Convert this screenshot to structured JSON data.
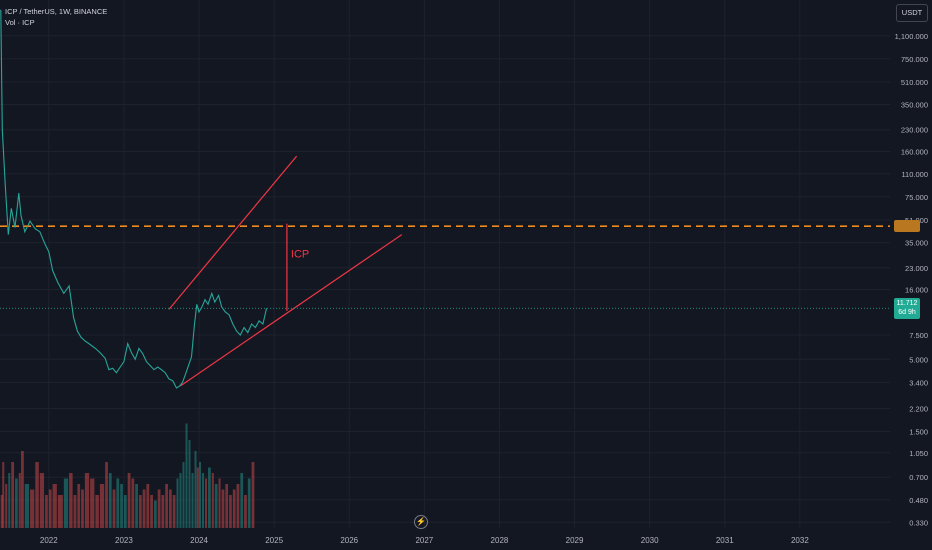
{
  "legend": {
    "symbol": "ICP / TetherUS, 1W, BINANCE",
    "indicator": "Vol · ICP"
  },
  "currency_button": "USDT",
  "price_label": {
    "price": "11.712",
    "countdown": "6d 9h"
  },
  "level_label": "",
  "colors": {
    "background": "#131722",
    "up": "#26a69a",
    "down": "#ef5350",
    "channel": "#f23645",
    "level": "#ef8a1f",
    "price_line": "#22ab94"
  },
  "chart_data": {
    "type": "line",
    "scale": "log",
    "ylim": [
      0.3,
      2000
    ],
    "xlim": [
      2021.35,
      2033.2
    ],
    "y_ticks": [
      {
        "v": 1100,
        "l": "1,100.000"
      },
      {
        "v": 750,
        "l": "750.000"
      },
      {
        "v": 510,
        "l": "510.000"
      },
      {
        "v": 350,
        "l": "350.000"
      },
      {
        "v": 230,
        "l": "230.000"
      },
      {
        "v": 160,
        "l": "160.000"
      },
      {
        "v": 110,
        "l": "110.000"
      },
      {
        "v": 75,
        "l": "75.000"
      },
      {
        "v": 51,
        "l": "51.000"
      },
      {
        "v": 35,
        "l": "35.000"
      },
      {
        "v": 23,
        "l": "23.000"
      },
      {
        "v": 16,
        "l": "16.000"
      },
      {
        "v": 7.5,
        "l": "7.500"
      },
      {
        "v": 5,
        "l": "5.000"
      },
      {
        "v": 3.4,
        "l": "3.400"
      },
      {
        "v": 2.2,
        "l": "2.200"
      },
      {
        "v": 1.5,
        "l": "1.500"
      },
      {
        "v": 1.05,
        "l": "1.050"
      },
      {
        "v": 0.7,
        "l": "0.700"
      },
      {
        "v": 0.48,
        "l": "0.480"
      },
      {
        "v": 0.33,
        "l": "0.330"
      }
    ],
    "x_ticks": [
      {
        "v": 2022,
        "l": "2022"
      },
      {
        "v": 2023,
        "l": "2023"
      },
      {
        "v": 2024,
        "l": "2024"
      },
      {
        "v": 2025,
        "l": "2025"
      },
      {
        "v": 2026,
        "l": "2026"
      },
      {
        "v": 2027,
        "l": "2027"
      },
      {
        "v": 2028,
        "l": "2028"
      },
      {
        "v": 2029,
        "l": "2029"
      },
      {
        "v": 2030,
        "l": "2030"
      },
      {
        "v": 2031,
        "l": "2031"
      },
      {
        "v": 2032,
        "l": "2032"
      }
    ],
    "series": [
      {
        "values": [
          [
            2021.36,
            1700
          ],
          [
            2021.38,
            230
          ],
          [
            2021.42,
            90
          ],
          [
            2021.46,
            40
          ],
          [
            2021.5,
            62
          ],
          [
            2021.55,
            45
          ],
          [
            2021.6,
            80
          ],
          [
            2021.63,
            55
          ],
          [
            2021.68,
            42
          ],
          [
            2021.75,
            50
          ],
          [
            2021.82,
            44
          ],
          [
            2021.88,
            42
          ],
          [
            2021.95,
            34
          ],
          [
            2022.0,
            30
          ],
          [
            2022.05,
            22
          ],
          [
            2022.12,
            18
          ],
          [
            2022.2,
            15
          ],
          [
            2022.27,
            17
          ],
          [
            2022.33,
            10
          ],
          [
            2022.38,
            8
          ],
          [
            2022.43,
            7.2
          ],
          [
            2022.48,
            6.8
          ],
          [
            2022.55,
            6.4
          ],
          [
            2022.62,
            6.0
          ],
          [
            2022.68,
            5.6
          ],
          [
            2022.75,
            5.1
          ],
          [
            2022.8,
            4.2
          ],
          [
            2022.85,
            4.3
          ],
          [
            2022.9,
            4.0
          ],
          [
            2022.95,
            4.4
          ],
          [
            2023.0,
            4.8
          ],
          [
            2023.05,
            6.5
          ],
          [
            2023.1,
            5.6
          ],
          [
            2023.15,
            5.0
          ],
          [
            2023.2,
            6.0
          ],
          [
            2023.25,
            5.5
          ],
          [
            2023.3,
            4.8
          ],
          [
            2023.35,
            4.5
          ],
          [
            2023.4,
            4.2
          ],
          [
            2023.45,
            4.4
          ],
          [
            2023.5,
            4.2
          ],
          [
            2023.55,
            4.0
          ],
          [
            2023.6,
            3.6
          ],
          [
            2023.65,
            3.5
          ],
          [
            2023.7,
            3.1
          ],
          [
            2023.74,
            3.2
          ],
          [
            2023.78,
            3.4
          ],
          [
            2023.82,
            3.9
          ],
          [
            2023.86,
            4.5
          ],
          [
            2023.9,
            5.2
          ],
          [
            2023.94,
            9.0
          ],
          [
            2023.97,
            12.5
          ],
          [
            2024.0,
            11.0
          ],
          [
            2024.04,
            12.0
          ],
          [
            2024.08,
            13.5
          ],
          [
            2024.12,
            12.5
          ],
          [
            2024.17,
            15.0
          ],
          [
            2024.21,
            13.0
          ],
          [
            2024.26,
            14.5
          ],
          [
            2024.3,
            12.0
          ],
          [
            2024.35,
            11.0
          ],
          [
            2024.4,
            10.5
          ],
          [
            2024.45,
            9.0
          ],
          [
            2024.5,
            8.0
          ],
          [
            2024.55,
            7.5
          ],
          [
            2024.6,
            8.5
          ],
          [
            2024.65,
            7.8
          ],
          [
            2024.7,
            9.0
          ],
          [
            2024.75,
            8.5
          ],
          [
            2024.8,
            9.5
          ],
          [
            2024.85,
            9.0
          ],
          [
            2024.9,
            11.712
          ]
        ]
      }
    ],
    "volume": [
      0.3,
      0.6,
      0.4,
      0.5,
      0.6,
      0.45,
      0.5,
      0.7,
      0.4,
      0.35,
      0.6,
      0.5,
      0.3,
      0.35,
      0.4,
      0.3,
      0.45,
      0.5,
      0.3,
      0.4,
      0.35,
      0.5,
      0.45,
      0.3,
      0.4,
      0.6,
      0.5,
      0.35,
      0.45,
      0.4,
      0.3,
      0.5,
      0.45,
      0.4,
      0.3,
      0.35,
      0.4,
      0.3,
      0.25,
      0.35,
      0.3,
      0.4,
      0.35,
      0.3,
      0.45,
      0.5,
      0.6,
      0.95,
      0.8,
      0.5,
      0.7,
      0.55,
      0.6,
      0.5,
      0.45,
      0.55,
      0.5,
      0.4,
      0.45,
      0.35,
      0.4,
      0.3,
      0.35,
      0.4,
      0.5,
      0.3,
      0.45,
      0.6
    ],
    "channel_upper": [
      [
        2023.6,
        11.5
      ],
      [
        2025.3,
        148
      ]
    ],
    "channel_lower": [
      [
        2023.75,
        3.2
      ],
      [
        2026.7,
        40
      ]
    ],
    "measure": {
      "x": 2025.17,
      "y_top": 48,
      "y_bottom": 11.2,
      "label": "ICP"
    },
    "hline": 46
  }
}
